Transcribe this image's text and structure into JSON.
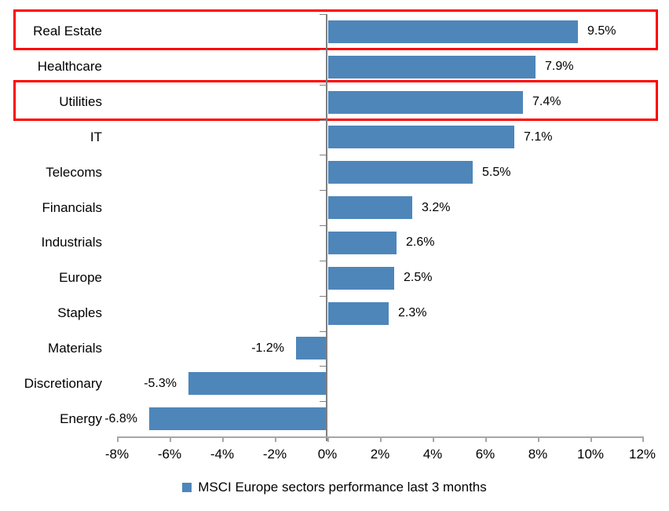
{
  "chart_data": {
    "type": "bar",
    "orientation": "horizontal",
    "title": "",
    "categories": [
      "Real Estate",
      "Healthcare",
      "Utilities",
      "IT",
      "Telecoms",
      "Financials",
      "Industrials",
      "Europe",
      "Staples",
      "Materials",
      "Discretionary",
      "Energy"
    ],
    "values": [
      9.5,
      7.9,
      7.4,
      7.1,
      5.5,
      3.2,
      2.6,
      2.5,
      2.3,
      -1.2,
      -5.3,
      -6.8
    ],
    "data_labels": [
      "9.5%",
      "7.9%",
      "7.4%",
      "7.1%",
      "5.5%",
      "3.2%",
      "2.6%",
      "2.5%",
      "2.3%",
      "-1.2%",
      "-5.3%",
      "-6.8%"
    ],
    "xlim": [
      -8,
      12
    ],
    "x_tick_values": [
      -8,
      -6,
      -4,
      -2,
      0,
      2,
      4,
      6,
      8,
      10,
      12
    ],
    "x_tick_labels": [
      "-8%",
      "-6%",
      "-4%",
      "-2%",
      "0%",
      "2%",
      "4%",
      "6%",
      "8%",
      "10%",
      "12%"
    ],
    "grid": false,
    "bar_color": "#4E86BA",
    "highlighted_categories": [
      "Real Estate",
      "Utilities"
    ],
    "highlight_color": "#FF0000",
    "axis_color_vertical": "#808080",
    "axis_color_horizontal": "#A6A6A6",
    "legend": {
      "label": "MSCI Europe sectors performance last 3 months",
      "marker_color": "#4E86BA",
      "position": "bottom-center"
    }
  }
}
